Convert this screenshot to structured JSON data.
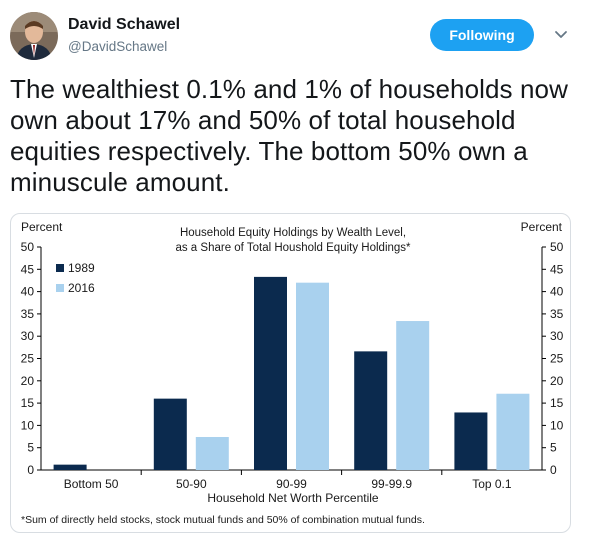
{
  "tweet": {
    "author_name": "David Schawel",
    "author_handle": "@DavidSchawel",
    "follow_label": "Following",
    "text": "The wealthiest 0.1% and 1% of households now own about 17% and 50% of total household equities respectively. The bottom 50% own a minuscule amount."
  },
  "icons": {
    "avatar": "avatar",
    "caret": "chevron-down-icon"
  },
  "colors": {
    "accent": "#1da1f2",
    "series_1989": "#0b2a4e",
    "series_2016": "#a9d1ee"
  },
  "chart_data": {
    "type": "bar",
    "title_lines": [
      "Household Equity Holdings  by Wealth Level,",
      "as a Share of Total Houshold Equity Holdings*"
    ],
    "ylabel_left": "Percent",
    "ylabel_right": "Percent",
    "xlabel": "Household  Net Worth Percentile",
    "footnote": "*Sum of directly held stocks, stock mutual funds and 50% of combination mutual funds.",
    "categories": [
      "Bottom 50",
      "50-90",
      "90-99",
      "99-99.9",
      "Top 0.1"
    ],
    "series": [
      {
        "name": "1989",
        "values": [
          1.2,
          16.0,
          43.3,
          26.6,
          12.9
        ]
      },
      {
        "name": "2016",
        "values": [
          0.0,
          7.4,
          42.0,
          33.4,
          17.1
        ]
      }
    ],
    "ylim": [
      0,
      50
    ],
    "yticks": [
      "0",
      "5",
      "10",
      "15",
      "20",
      "25",
      "30",
      "35",
      "40",
      "45",
      "50"
    ],
    "legend_position": "top-left",
    "grid": false
  }
}
